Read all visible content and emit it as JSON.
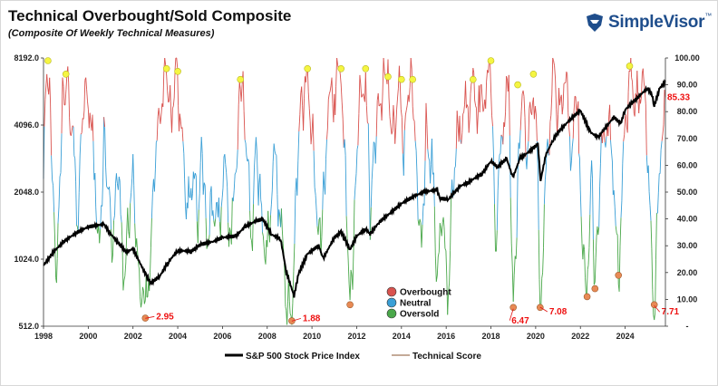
{
  "header": {
    "title": "Technical Overbought/Sold Composite",
    "subtitle": "(Composite Of Weekly Technical Measures)",
    "brand": "SimpleVisor",
    "brand_tm": "™"
  },
  "colors": {
    "overbought": "#d9534f",
    "neutral": "#3a9fd6",
    "oversold": "#4aa84a",
    "sp500": "#000000",
    "marker_high": "#f5f542",
    "marker_low": "#e88a55",
    "annotation": "#e11111",
    "brand": "#1f4e8c"
  },
  "chart_data": {
    "type": "line",
    "title": "Technical Overbought/Sold Composite",
    "subtitle": "(Composite Of Weekly Technical Measures)",
    "x_ticks": [
      "1998",
      "2000",
      "2002",
      "2004",
      "2006",
      "2008",
      "2010",
      "2012",
      "2014",
      "2016",
      "2018",
      "2020",
      "2022",
      "2024"
    ],
    "x_range": [
      1998,
      2025.8
    ],
    "left_axis": {
      "scale": "log2",
      "ticks": [
        "8192.0",
        "4096.0",
        "2048.0",
        "1024.0",
        "512.0"
      ],
      "range": [
        512,
        8192
      ]
    },
    "right_axis": {
      "ticks": [
        "100.00",
        "90.00",
        "80.00",
        "70.00",
        "60.00",
        "50.00",
        "40.00",
        "30.00",
        "20.00",
        "10.00",
        "-"
      ],
      "range": [
        0,
        100
      ]
    },
    "series": [
      {
        "name": "S&P 500 Stock Price Index",
        "axis": "left",
        "points": [
          [
            1998.0,
            960
          ],
          [
            1998.5,
            1120
          ],
          [
            1999.0,
            1250
          ],
          [
            1999.5,
            1350
          ],
          [
            2000.0,
            1430
          ],
          [
            2000.7,
            1470
          ],
          [
            2001.0,
            1330
          ],
          [
            2001.7,
            1100
          ],
          [
            2002.0,
            1140
          ],
          [
            2002.6,
            860
          ],
          [
            2002.8,
            800
          ],
          [
            2003.2,
            860
          ],
          [
            2003.6,
            1000
          ],
          [
            2004.0,
            1120
          ],
          [
            2004.6,
            1110
          ],
          [
            2005.0,
            1190
          ],
          [
            2005.6,
            1230
          ],
          [
            2006.0,
            1280
          ],
          [
            2006.6,
            1300
          ],
          [
            2007.0,
            1430
          ],
          [
            2007.5,
            1520
          ],
          [
            2007.8,
            1550
          ],
          [
            2008.2,
            1320
          ],
          [
            2008.6,
            1260
          ],
          [
            2008.85,
            900
          ],
          [
            2009.2,
            700
          ],
          [
            2009.4,
            880
          ],
          [
            2009.8,
            1080
          ],
          [
            2010.3,
            1180
          ],
          [
            2010.5,
            1030
          ],
          [
            2011.0,
            1280
          ],
          [
            2011.3,
            1360
          ],
          [
            2011.7,
            1130
          ],
          [
            2012.0,
            1300
          ],
          [
            2012.4,
            1400
          ],
          [
            2012.6,
            1330
          ],
          [
            2013.0,
            1500
          ],
          [
            2013.5,
            1650
          ],
          [
            2014.0,
            1820
          ],
          [
            2014.6,
            1970
          ],
          [
            2015.0,
            2050
          ],
          [
            2015.6,
            2100
          ],
          [
            2015.7,
            1920
          ],
          [
            2016.1,
            1900
          ],
          [
            2016.6,
            2170
          ],
          [
            2017.0,
            2270
          ],
          [
            2017.6,
            2480
          ],
          [
            2018.0,
            2820
          ],
          [
            2018.3,
            2650
          ],
          [
            2018.7,
            2900
          ],
          [
            2018.98,
            2380
          ],
          [
            2019.3,
            2900
          ],
          [
            2019.9,
            3220
          ],
          [
            2020.1,
            3380
          ],
          [
            2020.22,
            2300
          ],
          [
            2020.45,
            3000
          ],
          [
            2020.8,
            3550
          ],
          [
            2021.0,
            3800
          ],
          [
            2021.6,
            4400
          ],
          [
            2022.0,
            4760
          ],
          [
            2022.45,
            3800
          ],
          [
            2022.8,
            3600
          ],
          [
            2023.0,
            3850
          ],
          [
            2023.5,
            4450
          ],
          [
            2023.8,
            4150
          ],
          [
            2024.0,
            4800
          ],
          [
            2024.6,
            5500
          ],
          [
            2025.0,
            6000
          ],
          [
            2025.2,
            5600
          ],
          [
            2025.3,
            5000
          ],
          [
            2025.55,
            6000
          ],
          [
            2025.8,
            6400
          ]
        ]
      },
      {
        "name": "Technical Score",
        "axis": "right",
        "points": [
          [
            1998.0,
            58
          ],
          [
            1998.15,
            95
          ],
          [
            1998.35,
            72
          ],
          [
            1998.55,
            18
          ],
          [
            1998.65,
            40
          ],
          [
            1998.85,
            85
          ],
          [
            1999.05,
            92
          ],
          [
            1999.3,
            70
          ],
          [
            1999.55,
            40
          ],
          [
            1999.75,
            80
          ],
          [
            2000.0,
            88
          ],
          [
            2000.3,
            55
          ],
          [
            2000.5,
            30
          ],
          [
            2000.7,
            70
          ],
          [
            2000.9,
            50
          ],
          [
            2001.1,
            25
          ],
          [
            2001.3,
            60
          ],
          [
            2001.6,
            20
          ],
          [
            2001.8,
            40
          ],
          [
            2002.0,
            60
          ],
          [
            2002.2,
            25
          ],
          [
            2002.55,
            2.95
          ],
          [
            2002.8,
            30
          ],
          [
            2003.0,
            60
          ],
          [
            2003.3,
            90
          ],
          [
            2003.5,
            96
          ],
          [
            2003.7,
            80
          ],
          [
            2003.95,
            95
          ],
          [
            2004.2,
            70
          ],
          [
            2004.45,
            40
          ],
          [
            2004.7,
            60
          ],
          [
            2004.9,
            35
          ],
          [
            2005.1,
            70
          ],
          [
            2005.3,
            30
          ],
          [
            2005.5,
            50
          ],
          [
            2005.8,
            35
          ],
          [
            2006.1,
            60
          ],
          [
            2006.4,
            30
          ],
          [
            2006.8,
            92
          ],
          [
            2007.0,
            75
          ],
          [
            2007.3,
            35
          ],
          [
            2007.5,
            70
          ],
          [
            2007.75,
            40
          ],
          [
            2008.0,
            25
          ],
          [
            2008.3,
            65
          ],
          [
            2008.6,
            40
          ],
          [
            2008.85,
            10
          ],
          [
            2009.1,
            1.88
          ],
          [
            2009.3,
            55
          ],
          [
            2009.5,
            85
          ],
          [
            2009.8,
            90
          ],
          [
            2010.0,
            70
          ],
          [
            2010.4,
            25
          ],
          [
            2010.7,
            80
          ],
          [
            2011.0,
            90
          ],
          [
            2011.3,
            95
          ],
          [
            2011.5,
            60
          ],
          [
            2011.7,
            7
          ],
          [
            2011.9,
            40
          ],
          [
            2012.1,
            80
          ],
          [
            2012.4,
            95
          ],
          [
            2012.6,
            40
          ],
          [
            2012.8,
            70
          ],
          [
            2013.0,
            85
          ],
          [
            2013.4,
            93
          ],
          [
            2013.6,
            70
          ],
          [
            2013.9,
            91
          ],
          [
            2014.1,
            60
          ],
          [
            2014.3,
            88
          ],
          [
            2014.5,
            90
          ],
          [
            2014.7,
            55
          ],
          [
            2014.9,
            30
          ],
          [
            2015.1,
            75
          ],
          [
            2015.4,
            55
          ],
          [
            2015.6,
            15
          ],
          [
            2015.8,
            40
          ],
          [
            2016.1,
            15
          ],
          [
            2016.3,
            55
          ],
          [
            2016.6,
            75
          ],
          [
            2016.9,
            80
          ],
          [
            2017.2,
            88
          ],
          [
            2017.5,
            80
          ],
          [
            2017.8,
            90
          ],
          [
            2018.0,
            96
          ],
          [
            2018.2,
            30
          ],
          [
            2018.5,
            75
          ],
          [
            2018.8,
            88
          ],
          [
            2019.0,
            6.47
          ],
          [
            2019.2,
            50
          ],
          [
            2019.4,
            89
          ],
          [
            2019.6,
            60
          ],
          [
            2019.9,
            93
          ],
          [
            2020.1,
            60
          ],
          [
            2020.2,
            7.08
          ],
          [
            2020.5,
            60
          ],
          [
            2020.8,
            96
          ],
          [
            2021.0,
            75
          ],
          [
            2021.3,
            95
          ],
          [
            2021.6,
            65
          ],
          [
            2021.9,
            90
          ],
          [
            2022.0,
            50
          ],
          [
            2022.25,
            10
          ],
          [
            2022.5,
            55
          ],
          [
            2022.65,
            14
          ],
          [
            2022.9,
            60
          ],
          [
            2023.2,
            80
          ],
          [
            2023.5,
            55
          ],
          [
            2023.7,
            19
          ],
          [
            2024.0,
            75
          ],
          [
            2024.25,
            96
          ],
          [
            2024.5,
            80
          ],
          [
            2024.8,
            95
          ],
          [
            2025.0,
            60
          ],
          [
            2025.3,
            7.71
          ],
          [
            2025.6,
            70
          ],
          [
            2025.8,
            85.33
          ]
        ]
      }
    ],
    "thresholds": {
      "overbought_above": 70,
      "oversold_below": 40
    },
    "high_markers": [
      [
        1998.2,
        99
      ],
      [
        1999.0,
        94
      ],
      [
        2003.5,
        96
      ],
      [
        2004.0,
        95
      ],
      [
        2006.8,
        92
      ],
      [
        2009.8,
        96
      ],
      [
        2011.3,
        96
      ],
      [
        2012.4,
        96
      ],
      [
        2013.4,
        93
      ],
      [
        2014.0,
        92
      ],
      [
        2014.5,
        92
      ],
      [
        2017.2,
        92
      ],
      [
        2018.0,
        99
      ],
      [
        2019.2,
        90
      ],
      [
        2019.9,
        94
      ],
      [
        2024.2,
        97
      ]
    ],
    "low_markers": [
      [
        2002.55,
        3
      ],
      [
        2009.1,
        2
      ],
      [
        2011.7,
        8
      ],
      [
        2019.0,
        7
      ],
      [
        2020.2,
        7
      ],
      [
        2022.3,
        11
      ],
      [
        2022.65,
        14
      ],
      [
        2023.7,
        19
      ],
      [
        2025.3,
        8
      ]
    ],
    "annotations": [
      {
        "label": "2.95",
        "x": 2002.55,
        "y": 2.95
      },
      {
        "label": "1.88",
        "x": 2009.1,
        "y": 1.88
      },
      {
        "label": "6.47",
        "x": 2019.0,
        "y": 6.47
      },
      {
        "label": "7.08",
        "x": 2020.2,
        "y": 7.08
      },
      {
        "label": "7.71",
        "x": 2025.3,
        "y": 7.71
      },
      {
        "label": "85.33",
        "x": 2025.8,
        "y": 85.33
      }
    ],
    "legend_inner": [
      {
        "label": "Overbought",
        "color": "#d9534f"
      },
      {
        "label": "Neutral",
        "color": "#3a9fd6"
      },
      {
        "label": "Oversold",
        "color": "#4aa84a"
      }
    ],
    "legend_bottom": [
      {
        "label": "S&P 500 Stock Price Index",
        "style": "thick-black"
      },
      {
        "label": "Technical Score",
        "style": "thin-brown"
      }
    ],
    "grid": false
  }
}
